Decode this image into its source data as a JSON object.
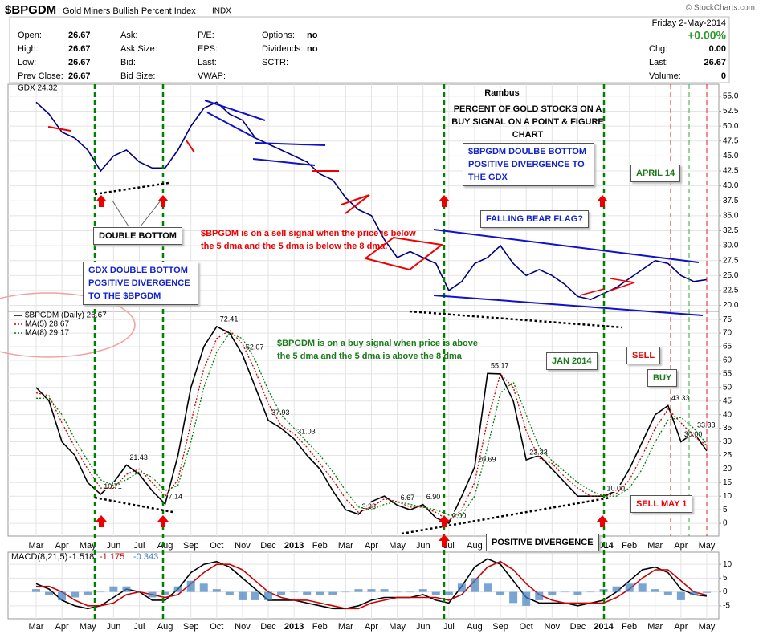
{
  "header": {
    "symbol": "$BPGDM",
    "name": "Gold Miners Bullish Percent Index",
    "exchange": "INDX",
    "copyright": "© StockCharts.com",
    "date": "Friday 2-May-2014",
    "change_pct": "+0.00%",
    "columns": [
      [
        {
          "label": "Open:",
          "value": "26.67"
        },
        {
          "label": "High:",
          "value": "26.67"
        },
        {
          "label": "Low:",
          "value": "26.67"
        },
        {
          "label": "Prev Close:",
          "value": "26.67"
        }
      ],
      [
        {
          "label": "Ask:"
        },
        {
          "label": "Ask Size:"
        },
        {
          "label": "Bid:"
        },
        {
          "label": "Bid Size:"
        }
      ],
      [
        {
          "label": "P/E:"
        },
        {
          "label": "EPS:"
        },
        {
          "label": "Last:"
        },
        {
          "label": "VWAP:"
        }
      ],
      [
        {
          "label": "Options:",
          "value": "no"
        },
        {
          "label": "Dividends:",
          "value": "no"
        },
        {
          "label": "SCTR:"
        }
      ]
    ],
    "right": [
      {
        "label": "Chg:",
        "value": "0.00"
      },
      {
        "label": "Last:",
        "value": "26.67"
      },
      {
        "label": "Volume:",
        "value": "0"
      }
    ]
  },
  "annotations": [
    "Rambus",
    "PERCENT OF GOLD STOCKS ON A BUY SIGNAL ON A POINT & FIGURE CHART",
    "$BPGDM DOULBE BOTTOM POSITIVE DIVERGENCE TO THE GDX",
    "APRIL 14",
    "FALLING BEAR FLAG?",
    "DOUBLE BOTTOM",
    "$BPGDM is on a sell signal when the price is below the 5 dma and the 5 dma is below the 8 dma.",
    "GDX DOUBLE BOTTOM POSITIVE DIVERGENCE TO THE $BPGDM",
    "$BPGDM is on a buy signal when price is above the 5 dma and the 5 dma is above the 8 dma",
    "JAN 2014",
    "SELL",
    "BUY",
    "SELL MAY 1",
    "POSITIVE DIVERGENCE"
  ],
  "chart_data": [
    {
      "type": "line",
      "categories": [
        "Mar",
        null,
        "Apr",
        null,
        "May",
        null,
        "Jun",
        null,
        "Jul",
        null,
        "Aug",
        null,
        "Sep",
        null,
        "Oct",
        null,
        "Nov",
        null,
        "Dec",
        null,
        "2013",
        null,
        "Feb",
        null,
        "Mar",
        null,
        "Apr",
        null,
        "May",
        null,
        "Jun",
        null,
        "Jul",
        null,
        "Aug",
        null,
        "Sep",
        null,
        "Oct",
        null,
        "Nov",
        null,
        "Dec",
        null,
        "2014",
        null,
        "Feb",
        null,
        "Mar",
        null,
        "Apr",
        null,
        "May"
      ],
      "series": [
        {
          "name": "GDX 24.32",
          "color": "#00007f",
          "values": [
            54,
            52,
            49,
            48,
            46,
            42.5,
            45,
            46,
            44,
            43,
            43,
            46,
            50,
            53,
            54,
            52,
            51,
            48,
            47,
            46,
            45,
            44,
            42,
            41,
            38,
            36,
            35,
            31,
            28,
            29,
            28,
            27,
            22.5,
            24,
            27,
            28,
            30,
            27,
            25,
            26,
            25,
            23.5,
            21.5,
            21,
            22,
            23,
            24.5,
            26,
            27.5,
            27,
            25,
            24,
            24.32
          ]
        }
      ],
      "ylim": [
        19,
        57
      ],
      "yticks": [
        {
          "value": 20,
          "label": "20.0"
        },
        {
          "value": 22.5,
          "label": "22.5"
        },
        {
          "value": 25,
          "label": "25.0"
        },
        {
          "value": 27.5,
          "label": "27.5"
        },
        {
          "value": 30,
          "label": "30.0"
        },
        {
          "value": 32.5,
          "label": "32.5"
        },
        {
          "value": 35,
          "label": "35.0"
        },
        {
          "value": 37.5,
          "label": "37.5"
        },
        {
          "value": 40,
          "label": "40.0"
        },
        {
          "value": 42.5,
          "label": "42.5"
        },
        {
          "value": 45,
          "label": "45.0"
        },
        {
          "value": 47.5,
          "label": "47.5"
        },
        {
          "value": 50,
          "label": "50.0"
        },
        {
          "value": 52.5,
          "label": "52.5"
        },
        {
          "value": 55,
          "label": "55.0"
        }
      ],
      "grid": true
    },
    {
      "type": "line",
      "categories": [
        "Mar",
        null,
        "Apr",
        null,
        "May",
        null,
        "Jun",
        null,
        "Jul",
        null,
        "Aug",
        null,
        "Sep",
        null,
        "Oct",
        null,
        "Nov",
        null,
        "Dec",
        null,
        "2013",
        null,
        "Feb",
        null,
        "Mar",
        null,
        "Apr",
        null,
        "May",
        null,
        "Jun",
        null,
        "Jul",
        null,
        "Aug",
        null,
        "Sep",
        null,
        "Oct",
        null,
        "Nov",
        null,
        "Dec",
        null,
        "2014",
        null,
        "Feb",
        null,
        "Mar",
        null,
        "Apr",
        null,
        "May"
      ],
      "series": [
        {
          "name": "$BPGDM (Daily) 26.67",
          "color": "#000000",
          "style": "solid",
          "values": [
            50,
            45,
            30,
            25,
            15,
            10.71,
            15,
            21.43,
            18,
            12,
            7.14,
            25,
            50,
            65,
            72.41,
            70,
            62.07,
            50,
            37.93,
            35,
            31.03,
            25,
            20,
            12,
            5,
            3.33,
            8,
            10,
            6.67,
            5,
            6.9,
            2,
            0,
            10,
            20.69,
            55.17,
            55,
            45,
            23.33,
            25,
            20,
            15,
            10,
            10,
            10,
            12,
            20,
            30,
            40,
            43.33,
            30,
            33.33,
            26.67
          ],
          "value_labels": [
            null,
            null,
            null,
            null,
            null,
            "10.71",
            null,
            "21.43",
            null,
            null,
            "7.14",
            null,
            null,
            null,
            "72.41",
            null,
            "62.07",
            null,
            "37.93",
            null,
            "31.03",
            null,
            null,
            null,
            null,
            "3.33",
            null,
            null,
            "6.67",
            null,
            "6.90",
            null,
            "0.00",
            null,
            "20.69",
            "55.17",
            null,
            null,
            "23.33",
            null,
            null,
            null,
            null,
            null,
            "10.00",
            null,
            null,
            null,
            null,
            "43.33",
            "30.00",
            "33.33",
            null
          ]
        },
        {
          "name": "MA(5) 28.67",
          "color": "#cc0000",
          "style": "dotted",
          "values": [
            48,
            47,
            37,
            28,
            20,
            13,
            13,
            18,
            20,
            15,
            10,
            16,
            37,
            57,
            68,
            71,
            66,
            56,
            44,
            36,
            33,
            28,
            22,
            16,
            9,
            4,
            6,
            9,
            8,
            6,
            6,
            4,
            1,
            5,
            15,
            38,
            55,
            50,
            34,
            24,
            22,
            17,
            13,
            10,
            10,
            11,
            16,
            25,
            35,
            42,
            37,
            32,
            28.67
          ]
        },
        {
          "name": "MA(8) 29.17",
          "color": "#007f00",
          "style": "dotted",
          "values": [
            46,
            46,
            40,
            31,
            23,
            16,
            14,
            16,
            19,
            17,
            12,
            14,
            30,
            50,
            63,
            70,
            68,
            60,
            49,
            40,
            35,
            30,
            25,
            19,
            12,
            6,
            5,
            7,
            8,
            7,
            6,
            5,
            3,
            3,
            10,
            28,
            48,
            52,
            40,
            28,
            23,
            19,
            15,
            12,
            10,
            10,
            13,
            20,
            30,
            38,
            39,
            35,
            29.17
          ]
        }
      ],
      "ylim": [
        -4.7,
        78
      ],
      "yticks": [
        0,
        5,
        10,
        15,
        20,
        25,
        30,
        35,
        40,
        45,
        50,
        55,
        60,
        65,
        70,
        75
      ],
      "grid": true
    },
    {
      "type": "line",
      "title": "MACD(8,21,5)",
      "categories": [
        "Mar",
        null,
        "Apr",
        null,
        "May",
        null,
        "Jun",
        null,
        "Jul",
        null,
        "Aug",
        null,
        "Sep",
        null,
        "Oct",
        null,
        "Nov",
        null,
        "Dec",
        null,
        "2013",
        null,
        "Feb",
        null,
        "Mar",
        null,
        "Apr",
        null,
        "May",
        null,
        "Jun",
        null,
        "Jul",
        null,
        "Aug",
        null,
        "Sep",
        null,
        "Oct",
        null,
        "Nov",
        null,
        "Dec",
        null,
        "2014",
        null,
        "Feb",
        null,
        "Mar",
        null,
        "Apr",
        null,
        "May"
      ],
      "series": [
        {
          "name": "-1.518",
          "color": "#000000",
          "style": "solid",
          "values": [
            3,
            1,
            -3,
            -5,
            -6,
            -5,
            -2,
            1,
            0,
            -3,
            -3,
            1,
            7,
            10,
            11,
            9,
            5,
            1,
            -3,
            -3,
            -3,
            -4,
            -5,
            -6,
            -6,
            -5,
            -3,
            -2,
            -2,
            -2,
            -1,
            -3,
            -4,
            2,
            9,
            12,
            10,
            4,
            -2,
            -4,
            -4,
            -4,
            -5,
            -4,
            -3,
            0,
            4,
            8,
            9,
            7,
            1,
            -1,
            -1.518
          ]
        },
        {
          "name": "-1.175",
          "color": "#cc0000",
          "style": "solid",
          "values": [
            2,
            2,
            0,
            -3,
            -5,
            -5,
            -4,
            -1,
            0,
            -1,
            -2,
            -1,
            3,
            7,
            10,
            10,
            8,
            4,
            0,
            -2,
            -3,
            -3,
            -4,
            -5,
            -6,
            -6,
            -4,
            -3,
            -2,
            -2,
            -2,
            -2,
            -3,
            -1,
            4,
            9,
            11,
            8,
            3,
            -1,
            -3,
            -4,
            -4,
            -4,
            -4,
            -2,
            1,
            5,
            8,
            8,
            4,
            0,
            -1.175
          ]
        },
        {
          "name": "-0.343",
          "color": "#3f7fbf",
          "type": "bar",
          "values": [
            1,
            -1,
            -3,
            -2,
            -1,
            0,
            2,
            2,
            0,
            -2,
            -1,
            2,
            4,
            3,
            1,
            -1,
            -3,
            -3,
            -3,
            -1,
            0,
            -1,
            -1,
            -1,
            0,
            1,
            1,
            1,
            0,
            0,
            1,
            -1,
            -1,
            3,
            5,
            3,
            -1,
            -4,
            -5,
            -3,
            -1,
            0,
            -1,
            0,
            1,
            2,
            3,
            3,
            1,
            -1,
            -3,
            -1,
            -0.343
          ]
        }
      ],
      "ylim": [
        -9.7,
        14.4
      ],
      "yticks": [
        -5,
        0,
        5,
        10
      ],
      "grid": true
    }
  ]
}
